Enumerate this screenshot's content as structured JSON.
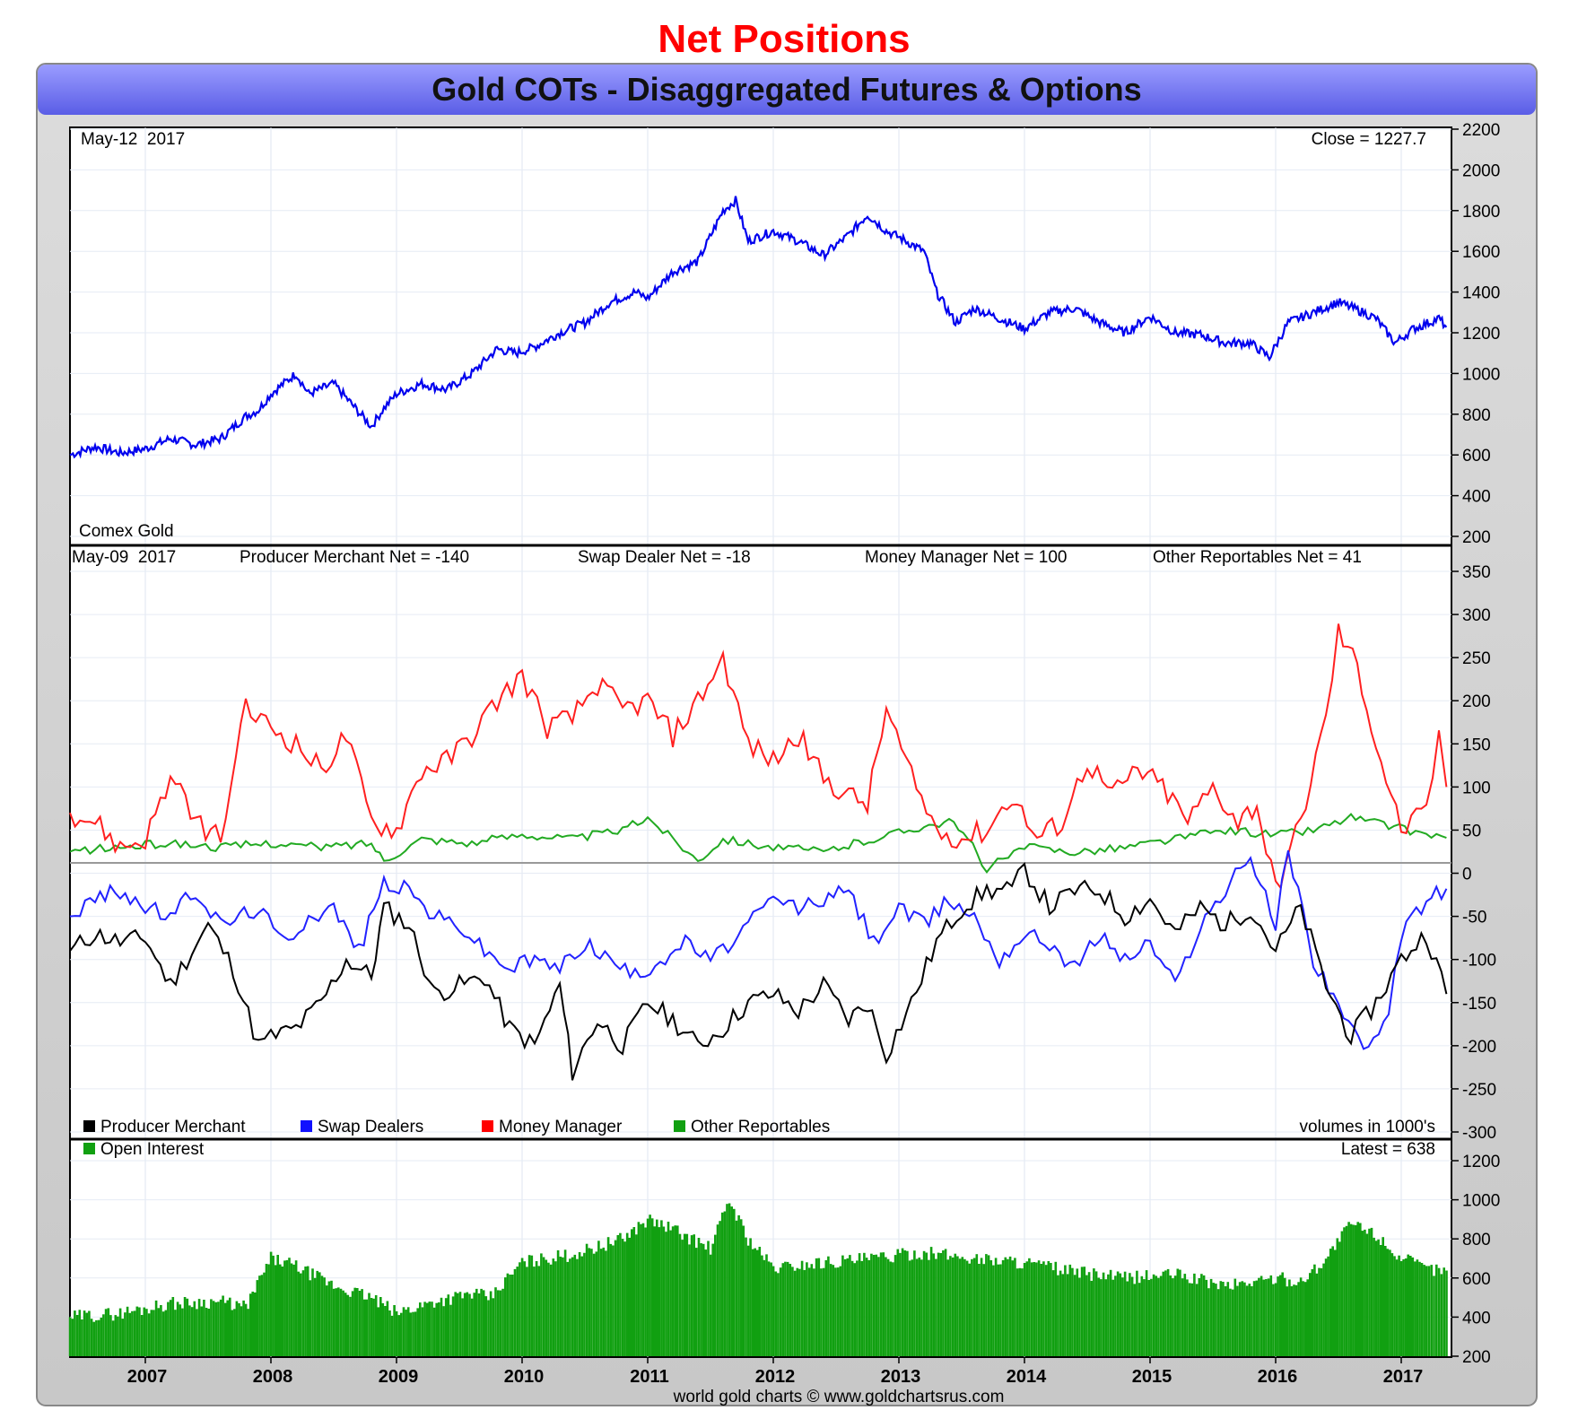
{
  "page_heading": "Net Positions",
  "frame_title": "Gold COTs - Disaggregated Futures & Options",
  "footer": "world gold charts © www.goldchartsrus.com",
  "colors": {
    "heading": "#ff0000",
    "title_bar": "#7b7ef0",
    "gold_line": "#0000ee",
    "producer": "#000000",
    "swap": "#2222ff",
    "money": "#ff2020",
    "other": "#22aa22",
    "oi_bar": "#11a011"
  },
  "chart_data": [
    {
      "type": "line",
      "name": "gold-price",
      "date_label": "May-12  2017",
      "close_label": "Close = 1227.7",
      "caption": "Comex Gold",
      "ylim": [
        200,
        2200
      ],
      "yticks": [
        200,
        400,
        600,
        800,
        1000,
        1200,
        1400,
        1600,
        1800,
        2000,
        2200
      ],
      "x_years": [
        "2007",
        "2008",
        "2009",
        "2010",
        "2011",
        "2012",
        "2013",
        "2014",
        "2015",
        "2016",
        "2017"
      ],
      "series": [
        {
          "x": [
            2006.4,
            2006.6,
            2006.8,
            2007.0,
            2007.2,
            2007.4,
            2007.6,
            2007.8,
            2007.9,
            2008.0,
            2008.2,
            2008.3,
            2008.5,
            2008.6,
            2008.8,
            2008.9,
            2009.0,
            2009.2,
            2009.4,
            2009.6,
            2009.8,
            2009.95,
            2010.1,
            2010.3,
            2010.5,
            2010.7,
            2010.9,
            2011.0,
            2011.2,
            2011.4,
            2011.6,
            2011.7,
            2011.8,
            2012.0,
            2012.2,
            2012.4,
            2012.6,
            2012.75,
            2012.9,
            2013.0,
            2013.2,
            2013.3,
            2013.45,
            2013.6,
            2013.8,
            2014.0,
            2014.2,
            2014.4,
            2014.6,
            2014.8,
            2015.0,
            2015.2,
            2015.4,
            2015.6,
            2015.8,
            2015.95,
            2016.1,
            2016.3,
            2016.5,
            2016.7,
            2016.8,
            2016.95,
            2017.1,
            2017.3,
            2017.36
          ],
          "values": [
            600,
            640,
            610,
            630,
            680,
            650,
            680,
            790,
            820,
            900,
            1000,
            900,
            950,
            880,
            740,
            830,
            900,
            950,
            920,
            1000,
            1120,
            1100,
            1130,
            1200,
            1250,
            1350,
            1400,
            1370,
            1500,
            1550,
            1800,
            1850,
            1650,
            1700,
            1650,
            1580,
            1680,
            1780,
            1700,
            1670,
            1600,
            1400,
            1250,
            1320,
            1270,
            1220,
            1300,
            1320,
            1250,
            1200,
            1280,
            1200,
            1190,
            1150,
            1150,
            1080,
            1250,
            1300,
            1350,
            1300,
            1270,
            1150,
            1220,
            1270,
            1227.7
          ]
        }
      ]
    },
    {
      "type": "line",
      "name": "cot-net-positions",
      "date_label": "May-09  2017",
      "labels": {
        "producer": "Producer Merchant Net = -140",
        "swap": "Swap Dealer Net = -18",
        "money": "Money Manager Net = 100",
        "other": "Other Reportables Net = 41"
      },
      "ylim": [
        -300,
        350
      ],
      "yticks": [
        -300,
        -250,
        -200,
        -150,
        -100,
        -50,
        0,
        50,
        100,
        150,
        200,
        250,
        300,
        350
      ],
      "legend": [
        "Producer Merchant",
        "Swap Dealers",
        "Money Manager",
        "Other Reportables"
      ],
      "volume_note": "volumes in 1000's",
      "series": [
        {
          "name": "Producer Merchant",
          "x": [
            2006.4,
            2006.6,
            2006.8,
            2007.0,
            2007.2,
            2007.5,
            2007.7,
            2007.9,
            2008.0,
            2008.2,
            2008.4,
            2008.6,
            2008.8,
            2008.9,
            2009.1,
            2009.3,
            2009.5,
            2009.7,
            2009.9,
            2010.1,
            2010.3,
            2010.4,
            2010.6,
            2010.8,
            2011.0,
            2011.2,
            2011.4,
            2011.6,
            2011.8,
            2012.0,
            2012.2,
            2012.4,
            2012.6,
            2012.75,
            2012.9,
            2013.1,
            2013.3,
            2013.5,
            2013.7,
            2013.9,
            2014.0,
            2014.2,
            2014.4,
            2014.6,
            2014.8,
            2015.0,
            2015.2,
            2015.4,
            2015.6,
            2015.8,
            2016.0,
            2016.2,
            2016.4,
            2016.6,
            2016.8,
            2017.0,
            2017.2,
            2017.36
          ],
          "values": [
            -90,
            -70,
            -80,
            -75,
            -130,
            -60,
            -110,
            -200,
            -190,
            -180,
            -150,
            -100,
            -120,
            -40,
            -60,
            -140,
            -130,
            -120,
            -180,
            -200,
            -130,
            -230,
            -170,
            -200,
            -150,
            -170,
            -200,
            -180,
            -150,
            -140,
            -160,
            -130,
            -170,
            -150,
            -210,
            -150,
            -80,
            -40,
            -20,
            -20,
            5,
            -40,
            -20,
            -20,
            -50,
            -30,
            -70,
            -40,
            -60,
            -40,
            -90,
            -40,
            -130,
            -190,
            -150,
            -100,
            -70,
            -140
          ]
        },
        {
          "name": "Swap Dealers",
          "x": [
            2006.4,
            2006.6,
            2006.8,
            2007.0,
            2007.2,
            2007.4,
            2007.6,
            2007.9,
            2008.1,
            2008.3,
            2008.5,
            2008.7,
            2008.9,
            2009.1,
            2009.3,
            2009.5,
            2009.7,
            2009.9,
            2010.1,
            2010.3,
            2010.5,
            2010.7,
            2010.9,
            2011.1,
            2011.3,
            2011.5,
            2011.6,
            2011.8,
            2012.0,
            2012.2,
            2012.4,
            2012.6,
            2012.8,
            2013.0,
            2013.2,
            2013.4,
            2013.6,
            2013.8,
            2014.0,
            2014.2,
            2014.4,
            2014.6,
            2014.8,
            2015.0,
            2015.2,
            2015.4,
            2015.6,
            2015.8,
            2016.0,
            2016.1,
            2016.3,
            2016.5,
            2016.7,
            2016.9,
            2017.0,
            2017.2,
            2017.36
          ],
          "values": [
            -50,
            -30,
            -20,
            -40,
            -50,
            -20,
            -60,
            -40,
            -80,
            -50,
            -40,
            -90,
            -10,
            -20,
            -50,
            -60,
            -90,
            -110,
            -100,
            -110,
            -80,
            -100,
            -120,
            -100,
            -80,
            -100,
            -90,
            -60,
            -30,
            -40,
            -30,
            -20,
            -80,
            -40,
            -60,
            -30,
            -50,
            -100,
            -70,
            -80,
            -110,
            -70,
            -100,
            -80,
            -130,
            -60,
            -20,
            20,
            -60,
            30,
            -100,
            -150,
            -210,
            -170,
            -70,
            -30,
            -18
          ]
        },
        {
          "name": "Money Manager",
          "x": [
            2006.4,
            2006.6,
            2006.8,
            2007.0,
            2007.2,
            2007.4,
            2007.6,
            2007.8,
            2008.0,
            2008.2,
            2008.4,
            2008.6,
            2008.8,
            2009.0,
            2009.2,
            2009.4,
            2009.6,
            2009.8,
            2010.0,
            2010.2,
            2010.4,
            2010.6,
            2010.8,
            2011.0,
            2011.2,
            2011.4,
            2011.6,
            2011.8,
            2012.0,
            2012.2,
            2012.4,
            2012.6,
            2012.75,
            2012.9,
            2013.1,
            2013.3,
            2013.5,
            2013.7,
            2013.9,
            2014.1,
            2014.3,
            2014.5,
            2014.7,
            2014.9,
            2015.1,
            2015.3,
            2015.5,
            2015.7,
            2015.85,
            2016.0,
            2016.2,
            2016.4,
            2016.5,
            2016.65,
            2016.8,
            2017.0,
            2017.2,
            2017.3,
            2017.36
          ],
          "values": [
            70,
            60,
            30,
            40,
            110,
            60,
            40,
            190,
            170,
            150,
            120,
            160,
            60,
            50,
            120,
            130,
            160,
            200,
            230,
            170,
            180,
            220,
            190,
            200,
            160,
            200,
            250,
            150,
            130,
            160,
            110,
            90,
            80,
            190,
            110,
            50,
            40,
            50,
            90,
            40,
            60,
            130,
            90,
            120,
            100,
            60,
            100,
            60,
            80,
            -20,
            60,
            180,
            280,
            240,
            150,
            50,
            70,
            160,
            100
          ]
        },
        {
          "name": "Other Reportables",
          "x": [
            2006.4,
            2006.8,
            2007.2,
            2007.6,
            2008.0,
            2008.4,
            2008.8,
            2008.9,
            2009.2,
            2009.6,
            2010.0,
            2010.4,
            2010.8,
            2011.0,
            2011.2,
            2011.4,
            2011.6,
            2012.0,
            2012.4,
            2012.8,
            2013.2,
            2013.4,
            2013.55,
            2013.7,
            2014.0,
            2014.4,
            2014.8,
            2015.2,
            2015.6,
            2016.0,
            2016.3,
            2016.6,
            2016.9,
            2017.2,
            2017.36
          ],
          "values": [
            25,
            30,
            35,
            30,
            35,
            30,
            35,
            15,
            40,
            35,
            45,
            40,
            50,
            65,
            40,
            15,
            40,
            30,
            25,
            40,
            55,
            60,
            40,
            5,
            30,
            25,
            30,
            40,
            50,
            45,
            50,
            65,
            55,
            45,
            41
          ]
        }
      ]
    },
    {
      "type": "bar",
      "name": "open-interest",
      "legend": [
        "Open Interest"
      ],
      "latest_label": "Latest = 638",
      "ylim": [
        200,
        1200
      ],
      "yticks": [
        200,
        400,
        600,
        800,
        1000,
        1200
      ],
      "x_years": [
        "2007",
        "2008",
        "2009",
        "2010",
        "2011",
        "2012",
        "2013",
        "2014",
        "2015",
        "2016",
        "2017"
      ],
      "series": [
        {
          "name": "Open Interest",
          "x": [
            2006.4,
            2006.8,
            2007.2,
            2007.6,
            2007.8,
            2008.0,
            2008.2,
            2008.5,
            2008.8,
            2009.0,
            2009.3,
            2009.6,
            2009.75,
            2010.0,
            2010.4,
            2010.8,
            2011.0,
            2011.2,
            2011.5,
            2011.65,
            2011.8,
            2012.0,
            2012.4,
            2012.8,
            2013.2,
            2013.6,
            2014.0,
            2014.4,
            2014.8,
            2015.2,
            2015.6,
            2016.0,
            2016.2,
            2016.4,
            2016.6,
            2016.8,
            2017.0,
            2017.2,
            2017.36
          ],
          "values": [
            400,
            420,
            470,
            480,
            450,
            700,
            660,
            560,
            500,
            420,
            480,
            520,
            500,
            680,
            720,
            800,
            900,
            850,
            750,
            1000,
            800,
            650,
            680,
            700,
            730,
            700,
            680,
            630,
            600,
            620,
            560,
            600,
            580,
            700,
            880,
            820,
            700,
            650,
            638
          ]
        }
      ]
    }
  ]
}
